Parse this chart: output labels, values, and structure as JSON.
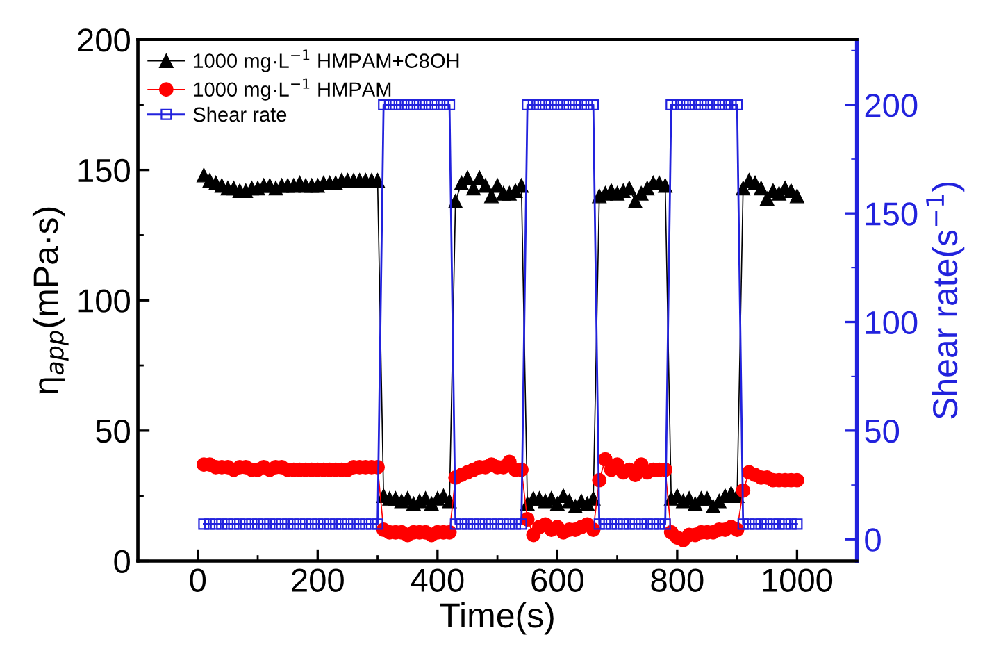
{
  "chart_data": {
    "type": "line",
    "xlabel": "Time(s)",
    "ylabel": "η$_{app}$(mPa·s)",
    "y2label": "Shear rate(s$^{−1}$)",
    "xlim": [
      -100,
      1100
    ],
    "xticks": [
      0,
      {
        "value": 100,
        "label": null
      },
      200,
      {
        "value": 300,
        "label": null
      },
      400,
      {
        "value": 500,
        "label": null
      },
      600,
      {
        "value": 700,
        "label": null
      },
      800,
      {
        "value": 900,
        "label": null
      },
      1000
    ],
    "ylim": [
      0,
      200
    ],
    "yticks": [
      0,
      {
        "value": 25,
        "label": null
      },
      50,
      {
        "value": 75,
        "label": null
      },
      100,
      {
        "value": 125,
        "label": null
      },
      150,
      {
        "value": 175,
        "label": null
      },
      200
    ],
    "y2lim": [
      -10,
      230
    ],
    "y2ticks": [
      0,
      {
        "value": 25,
        "label": null
      },
      50,
      {
        "value": 75,
        "label": null
      },
      100,
      {
        "value": 125,
        "label": null
      },
      150,
      {
        "value": 175,
        "label": null
      },
      200,
      {
        "value": 225,
        "label": null
      }
    ],
    "grid": false,
    "legend": "top left",
    "x": [
      10,
      20,
      30,
      40,
      50,
      60,
      70,
      80,
      90,
      100,
      110,
      120,
      130,
      140,
      150,
      160,
      170,
      180,
      190,
      200,
      210,
      220,
      230,
      240,
      250,
      260,
      270,
      280,
      290,
      300,
      310,
      320,
      330,
      340,
      350,
      360,
      370,
      380,
      390,
      400,
      410,
      420,
      430,
      440,
      450,
      460,
      470,
      480,
      490,
      500,
      510,
      520,
      530,
      540,
      550,
      560,
      570,
      580,
      590,
      600,
      610,
      620,
      630,
      640,
      650,
      660,
      670,
      680,
      690,
      700,
      710,
      720,
      730,
      740,
      750,
      760,
      770,
      780,
      790,
      800,
      810,
      820,
      830,
      840,
      850,
      860,
      870,
      880,
      890,
      900,
      910,
      920,
      930,
      940,
      950,
      960,
      970,
      980,
      990,
      1000
    ],
    "series": [
      {
        "name": "1000 mg·L$^{−1}$ HMPAM+C8OH",
        "color": "#000000",
        "marker": "triangle",
        "values": [
          148,
          146,
          145,
          144,
          143,
          143,
          142,
          142,
          143,
          143,
          144,
          144,
          143,
          144,
          144,
          144,
          145,
          144,
          144,
          144,
          145,
          145,
          145,
          146,
          146,
          146,
          146,
          146,
          146,
          146,
          25,
          24,
          24,
          23,
          24,
          22,
          23,
          24,
          22,
          24,
          25,
          23,
          138,
          145,
          147,
          143,
          147,
          144,
          140,
          144,
          141,
          141,
          142,
          144,
          22,
          24,
          24,
          23,
          24,
          22,
          25,
          23,
          21,
          23,
          22,
          24,
          140,
          141,
          142,
          141,
          142,
          143,
          138,
          141,
          143,
          145,
          145,
          144,
          24,
          25,
          23,
          24,
          22,
          24,
          24,
          21,
          23,
          25,
          26,
          25,
          143,
          146,
          145,
          143,
          139,
          142,
          141,
          143,
          142,
          140
        ]
      },
      {
        "name": "1000 mg·L$^{−1}$ HMPAM",
        "color": "#ff0000",
        "marker": "circle",
        "values": [
          37,
          37,
          36,
          36,
          36,
          35,
          36,
          36,
          35,
          35,
          36,
          35,
          36,
          36,
          35,
          35,
          35,
          35,
          35,
          35,
          35,
          35,
          35,
          35,
          35,
          36,
          36,
          36,
          36,
          36,
          12,
          11,
          11,
          11,
          10,
          11,
          11,
          11,
          10,
          11,
          11,
          11,
          32,
          33,
          34,
          35,
          36,
          36,
          37,
          36,
          36,
          38,
          35,
          35,
          16,
          10,
          13,
          14,
          12,
          13,
          11,
          12,
          12,
          13,
          14,
          12,
          31,
          39,
          35,
          37,
          34,
          35,
          33,
          37,
          34,
          35,
          35,
          35,
          11,
          9,
          8,
          10,
          10,
          11,
          11,
          11,
          12,
          12,
          13,
          12,
          27,
          34,
          33,
          32,
          32,
          31,
          31,
          31,
          31,
          31
        ]
      },
      {
        "name": "Shear rate",
        "color": "#2222dd",
        "marker": "square",
        "axis": "y2",
        "values": [
          7,
          7,
          7,
          7,
          7,
          7,
          7,
          7,
          7,
          7,
          7,
          7,
          7,
          7,
          7,
          7,
          7,
          7,
          7,
          7,
          7,
          7,
          7,
          7,
          7,
          7,
          7,
          7,
          7,
          7,
          200,
          200,
          200,
          200,
          200,
          200,
          200,
          200,
          200,
          200,
          200,
          200,
          7,
          7,
          7,
          7,
          7,
          7,
          7,
          7,
          7,
          7,
          7,
          7,
          200,
          200,
          200,
          200,
          200,
          200,
          200,
          200,
          200,
          200,
          200,
          200,
          7,
          7,
          7,
          7,
          7,
          7,
          7,
          7,
          7,
          7,
          7,
          7,
          200,
          200,
          200,
          200,
          200,
          200,
          200,
          200,
          200,
          200,
          200,
          200,
          7,
          7,
          7,
          7,
          7,
          7,
          7,
          7,
          7,
          7
        ]
      }
    ]
  }
}
